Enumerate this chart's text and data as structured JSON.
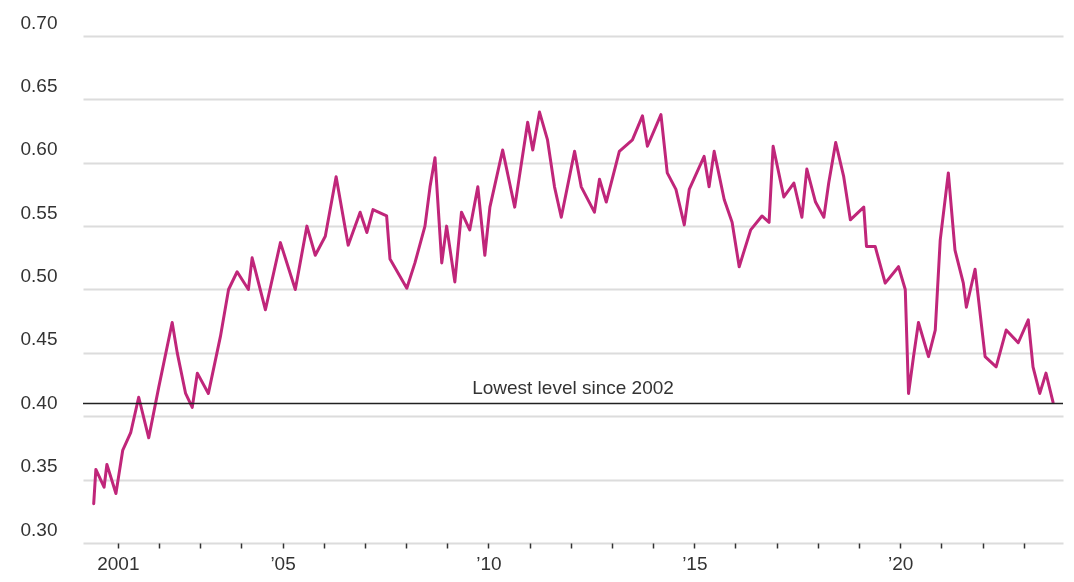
{
  "chart_data": {
    "type": "line",
    "x": [
      "2000-06-01",
      "2000-06-20",
      "2000-09-01",
      "2000-09-26",
      "2000-12-15",
      "2001-02-13",
      "2001-04-25",
      "2001-07-05",
      "2001-10-02",
      "2001-12-30",
      "2002-04-28",
      "2002-06-12",
      "2002-08-25",
      "2002-10-23",
      "2002-12-07",
      "2003-03-15",
      "2003-06-30",
      "2003-09-10",
      "2003-11-25",
      "2004-03-04",
      "2004-04-06",
      "2004-08-02",
      "2004-12-13",
      "2005-04-24",
      "2005-08-05",
      "2005-10-18",
      "2006-01-15",
      "2006-04-21",
      "2006-08-06",
      "2006-11-20",
      "2007-01-19",
      "2007-03-14",
      "2007-07-13",
      "2007-08-12",
      "2008-01-08",
      "2008-03-20",
      "2008-06-17",
      "2008-08-01",
      "2008-09-14",
      "2008-11-13",
      "2008-12-26",
      "2009-03-09",
      "2009-05-07",
      "2009-07-19",
      "2009-09-29",
      "2009-11-30",
      "2010-01-14",
      "2010-05-07",
      "2010-08-22",
      "2010-12-15",
      "2011-01-29",
      "2011-03-30",
      "2011-06-09",
      "2011-08-10",
      "2011-10-09",
      "2012-02-04",
      "2012-04-03",
      "2012-07-29",
      "2012-09-12",
      "2012-11-11",
      "2013-03-07",
      "2013-07-01",
      "2013-09-28",
      "2013-11-11",
      "2014-03-11",
      "2014-05-06",
      "2014-07-22",
      "2014-10-04",
      "2014-11-17",
      "2015-03-29",
      "2015-05-12",
      "2015-06-26",
      "2015-09-23",
      "2015-12-02",
      "2016-02-03",
      "2016-05-15",
      "2016-08-23",
      "2016-10-25",
      "2016-11-30",
      "2017-03-05",
      "2017-06-02",
      "2017-08-12",
      "2017-09-25",
      "2017-12-11",
      "2018-02-23",
      "2018-04-07",
      "2018-06-08",
      "2018-08-18",
      "2018-10-16",
      "2019-02-12",
      "2019-03-08",
      "2019-05-24",
      "2019-08-21",
      "2019-12-17",
      "2020-02-15",
      "2020-03-15",
      "2020-04-28",
      "2020-06-11",
      "2020-09-08",
      "2020-11-07",
      "2020-12-21",
      "2021-03-03",
      "2021-05-01",
      "2021-07-14",
      "2021-08-10",
      "2021-10-26",
      "2022-01-23",
      "2022-05-01",
      "2022-07-29",
      "2022-11-13",
      "2023-02-10",
      "2023-03-24",
      "2023-05-23",
      "2023-07-17",
      "2023-09-18"
    ],
    "series": [
      {
        "color": "#c0267a",
        "values": [
          0.331,
          0.358,
          0.344,
          0.362,
          0.339,
          0.373,
          0.387,
          0.415,
          0.383,
          0.423,
          0.474,
          0.45,
          0.418,
          0.407,
          0.434,
          0.418,
          0.463,
          0.5,
          0.514,
          0.5,
          0.525,
          0.484,
          0.537,
          0.5,
          0.55,
          0.527,
          0.542,
          0.589,
          0.535,
          0.561,
          0.545,
          0.563,
          0.558,
          0.524,
          0.501,
          0.521,
          0.55,
          0.581,
          0.604,
          0.521,
          0.55,
          0.506,
          0.561,
          0.547,
          0.581,
          0.527,
          0.565,
          0.61,
          0.565,
          0.632,
          0.61,
          0.64,
          0.618,
          0.581,
          0.557,
          0.609,
          0.581,
          0.561,
          0.587,
          0.569,
          0.609,
          0.618,
          0.637,
          0.613,
          0.638,
          0.592,
          0.579,
          0.551,
          0.579,
          0.605,
          0.581,
          0.609,
          0.571,
          0.553,
          0.518,
          0.547,
          0.558,
          0.553,
          0.613,
          0.573,
          0.584,
          0.557,
          0.595,
          0.569,
          0.557,
          0.584,
          0.616,
          0.589,
          0.555,
          0.565,
          0.534,
          0.534,
          0.505,
          0.518,
          0.5,
          0.418,
          0.447,
          0.474,
          0.447,
          0.468,
          0.539,
          0.592,
          0.531,
          0.505,
          0.486,
          0.516,
          0.447,
          0.439,
          0.468,
          0.458,
          0.476,
          0.439,
          0.418,
          0.434,
          0.411
        ]
      }
    ],
    "xlim": [
      "2000-02-27",
      "2023-12-15"
    ],
    "xticks": [
      {
        "value": "2001-01-01",
        "label": "2001"
      },
      {
        "value": "2002-01-01",
        "label": null
      },
      {
        "value": "2003-01-01",
        "label": null
      },
      {
        "value": "2004-01-01",
        "label": null
      },
      {
        "value": "2005-01-01",
        "label": "’05"
      },
      {
        "value": "2006-01-01",
        "label": null
      },
      {
        "value": "2007-01-01",
        "label": null
      },
      {
        "value": "2008-01-01",
        "label": null
      },
      {
        "value": "2009-01-01",
        "label": null
      },
      {
        "value": "2010-01-01",
        "label": "’10"
      },
      {
        "value": "2011-01-01",
        "label": null
      },
      {
        "value": "2012-01-01",
        "label": null
      },
      {
        "value": "2013-01-01",
        "label": null
      },
      {
        "value": "2014-01-01",
        "label": null
      },
      {
        "value": "2015-01-01",
        "label": "’15"
      },
      {
        "value": "2016-01-01",
        "label": null
      },
      {
        "value": "2017-01-01",
        "label": null
      },
      {
        "value": "2018-01-01",
        "label": null
      },
      {
        "value": "2019-01-01",
        "label": null
      },
      {
        "value": "2020-01-01",
        "label": "’20"
      },
      {
        "value": "2021-01-01",
        "label": null
      },
      {
        "value": "2022-01-01",
        "label": null
      },
      {
        "value": "2023-01-01",
        "label": null
      }
    ],
    "ylim": [
      0.3,
      0.7
    ],
    "yticks": [
      {
        "value": 0.3,
        "label": "0.30"
      },
      {
        "value": 0.35,
        "label": "0.35"
      },
      {
        "value": 0.4,
        "label": "0.40"
      },
      {
        "value": 0.45,
        "label": "0.45"
      },
      {
        "value": 0.5,
        "label": "0.50"
      },
      {
        "value": 0.55,
        "label": "0.55"
      },
      {
        "value": 0.6,
        "label": "0.60"
      },
      {
        "value": 0.65,
        "label": "0.65"
      },
      {
        "value": 0.7,
        "label": "0.70"
      }
    ],
    "grid": "y",
    "ref_lines": [
      {
        "axis": "y",
        "value": 0.41,
        "label": "Lowest level since 2002",
        "color": "#222222"
      }
    ]
  }
}
